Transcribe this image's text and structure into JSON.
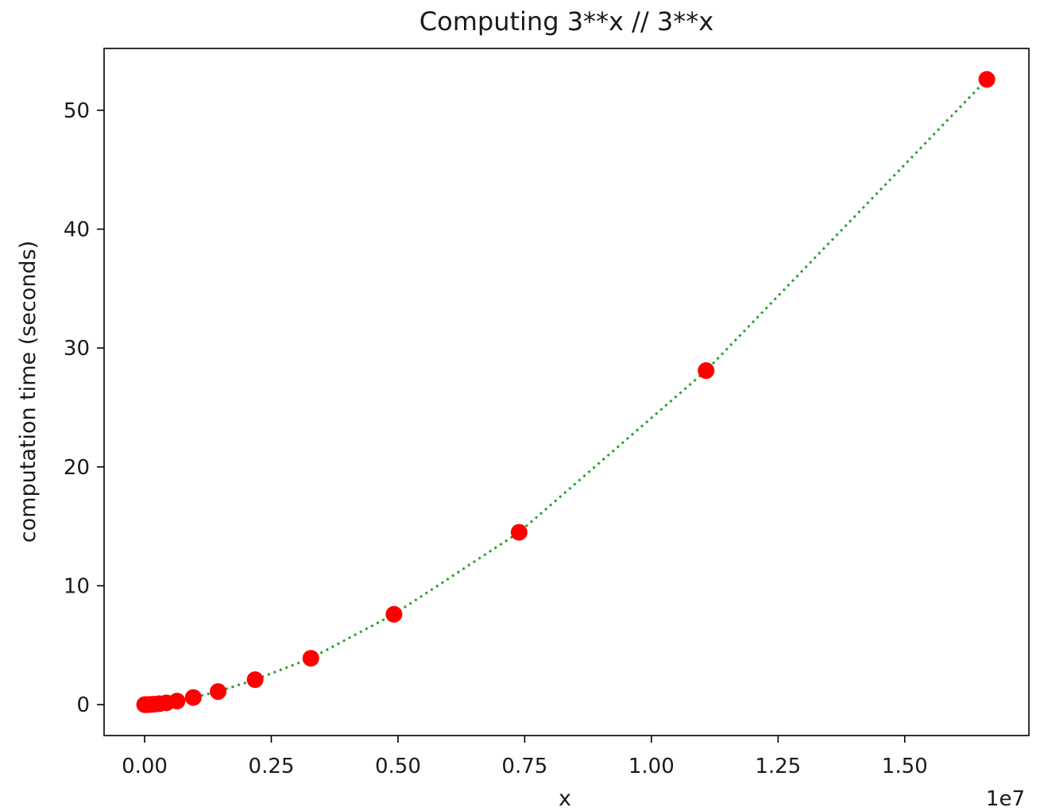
{
  "chart_data": {
    "type": "scatter",
    "title": "Computing 3**x // 3**x",
    "xlabel": "x",
    "ylabel": "computation time (seconds)",
    "x_offset_label": "1e7",
    "xlim": [
      -0.08,
      1.745
    ],
    "ylim": [
      -2.6,
      55.2
    ],
    "x_ticks": [
      {
        "value": 0.0,
        "label": "0.00"
      },
      {
        "value": 0.25,
        "label": "0.25"
      },
      {
        "value": 0.5,
        "label": "0.50"
      },
      {
        "value": 0.75,
        "label": "0.75"
      },
      {
        "value": 1.0,
        "label": "1.00"
      },
      {
        "value": 1.25,
        "label": "1.25"
      },
      {
        "value": 1.5,
        "label": "1.50"
      }
    ],
    "y_ticks": [
      {
        "value": 0,
        "label": "0"
      },
      {
        "value": 10,
        "label": "10"
      },
      {
        "value": 20,
        "label": "20"
      },
      {
        "value": 30,
        "label": "30"
      },
      {
        "value": 40,
        "label": "40"
      },
      {
        "value": 50,
        "label": "50"
      }
    ],
    "grid": false,
    "series": [
      {
        "line_color": "#2ca02c",
        "line_style": "dotted",
        "marker_color": "#ff0000",
        "marker": "circle",
        "x": [
          0.0,
          0.001,
          0.002,
          0.004,
          0.006,
          0.009,
          0.013,
          0.019,
          0.029,
          0.043,
          0.064,
          0.096,
          0.145,
          0.218,
          0.328,
          0.492,
          0.739,
          1.108,
          1.662
        ],
        "y": [
          0.0,
          0.0,
          0.0,
          0.0,
          0.0,
          0.01,
          0.02,
          0.04,
          0.08,
          0.15,
          0.3,
          0.6,
          1.1,
          2.1,
          3.9,
          7.6,
          14.5,
          28.1,
          52.6
        ]
      }
    ]
  }
}
